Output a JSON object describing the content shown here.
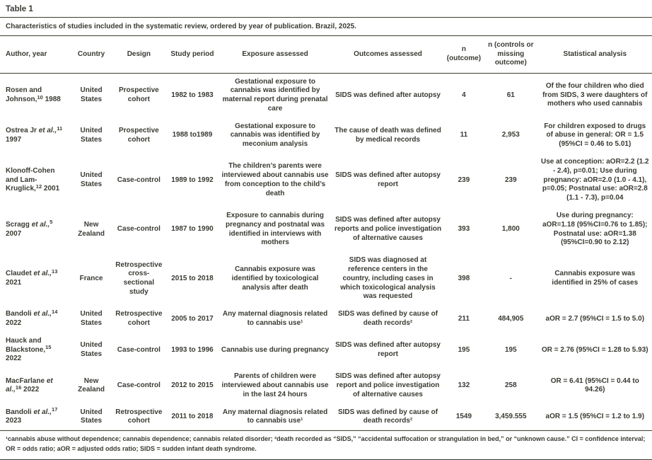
{
  "page": {
    "table_label": "Table 1",
    "caption": "Characteristics of studies included in the systematic review, ordered by year of publication. Brazil, 2025.",
    "footnote": "¹cannabis abuse without dependence; cannabis dependence; cannabis related disorder; ²death recorded as “SIDS,” “accidental suffocation or strangulation in bed,” or “unknown cause.” CI = confidence interval; OR = odds ratio; aOR = adjusted odds ratio; SIDS = sudden infant death syndrome."
  },
  "table": {
    "headers": [
      "Author, year",
      "Country",
      "Design",
      "Study period",
      "Exposure assessed",
      "Outcomes assessed",
      "n (outcome)",
      "n (controls or missing outcome)",
      "Statistical analysis"
    ],
    "rows": [
      {
        "author": {
          "name": "Rosen and Johnson,",
          "etal": "",
          "ref": "10",
          "year": " 1988"
        },
        "country": "United States",
        "design": "Prospective cohort",
        "period": "1982 to 1983",
        "exposure": "Gestational exposure to cannabis was identified by maternal report during prenatal care",
        "outcomes": "SIDS was defined after autopsy",
        "n_outcome": "4",
        "n_controls": "61",
        "stats": "Of the four children who died from SIDS, 3 were daughters of mothers who used cannabis"
      },
      {
        "author": {
          "name": "Ostrea Jr ",
          "etal": "et al.,",
          "ref": "11",
          "year": " 1997"
        },
        "country": "United States",
        "design": "Prospective cohort",
        "period": "1988 to1989",
        "exposure": "Gestational exposure to cannabis was identified by meconium analysis",
        "outcomes": "The cause of death was defined by medical records",
        "n_outcome": "11",
        "n_controls": "2,953",
        "stats": "For children exposed to drugs of abuse in general: OR = 1.5 (95%CI = 0.46 to 5.01)"
      },
      {
        "author": {
          "name": "Klonoff-Cohen and Lam-Kruglick,",
          "etal": "",
          "ref": "12",
          "year": " 2001"
        },
        "country": "United States",
        "design": "Case-control",
        "period": "1989 to 1992",
        "exposure": "The children’s parents were interviewed about cannabis use from conception to the child’s death",
        "outcomes": "SIDS was defined after autopsy report",
        "n_outcome": "239",
        "n_controls": "239",
        "stats": "Use at conception: aOR=2.2 (1.2 - 2.4), p=0.01; Use during pregnancy: aOR=2.0 (1.0 - 4.1), p=0.05; Postnatal use: aOR=2.8 (1.1 - 7.3), p=0.04"
      },
      {
        "author": {
          "name": "Scragg ",
          "etal": "et al.,",
          "ref": "5",
          "year": " 2007"
        },
        "country": "New Zealand",
        "design": "Case-control",
        "period": "1987 to 1990",
        "exposure": "Exposure to cannabis during pregnancy and postnatal was identified in interviews with mothers",
        "outcomes": "SIDS was defined after autopsy reports and police investigation of alternative causes",
        "n_outcome": "393",
        "n_controls": "1,800",
        "stats": "Use during pregnancy: aOR=1.18 (95%CI=0.76 to 1.85); Postnatal use: aOR=1.38 (95%CI=0.90 to 2.12)"
      },
      {
        "author": {
          "name": "Claudet ",
          "etal": "et al.,",
          "ref": "13",
          "year": " 2021"
        },
        "country": "France",
        "design": "Retrospective cross-sectional study",
        "period": "2015 to 2018",
        "exposure": "Cannabis exposure was identified by toxicological analysis after death",
        "outcomes": "SIDS was diagnosed at reference centers in the country, including cases in which toxicological analysis was requested",
        "n_outcome": "398",
        "n_controls": "-",
        "stats": "Cannabis exposure was identified in 25% of cases"
      },
      {
        "author": {
          "name": "Bandoli ",
          "etal": "et al.,",
          "ref": "14",
          "year": " 2022"
        },
        "country": "United States",
        "design": "Retrospective cohort",
        "period": "2005 to 2017",
        "exposure": "Any maternal diagnosis related to cannabis use¹",
        "outcomes": "SIDS was defined by cause of death records²",
        "n_outcome": "211",
        "n_controls": "484,905",
        "stats": "aOR = 2.7 (95%CI = 1.5 to 5.0)"
      },
      {
        "author": {
          "name": "Hauck and Blackstone,",
          "etal": "",
          "ref": "15",
          "year": " 2022"
        },
        "country": "United States",
        "design": "Case-control",
        "period": "1993 to 1996",
        "exposure": "Cannabis use during pregnancy",
        "outcomes": "SIDS was defined after autopsy report",
        "n_outcome": "195",
        "n_controls": "195",
        "stats": "OR = 2.76 (95%CI = 1.28 to 5.93)"
      },
      {
        "author": {
          "name": "MacFarlane ",
          "etal": "et al.,",
          "ref": "16",
          "year": " 2022"
        },
        "country": "New Zealand",
        "design": "Case-control",
        "period": "2012 to 2015",
        "exposure": "Parents of children were interviewed about cannabis use in the last 24 hours",
        "outcomes": "SIDS was defined after autopsy report and police investigation of alternative causes",
        "n_outcome": "132",
        "n_controls": "258",
        "stats": "OR = 6.41 (95%CI = 0.44 to 94.26)"
      },
      {
        "author": {
          "name": "Bandoli ",
          "etal": "et al.,",
          "ref": "17",
          "year": " 2023"
        },
        "country": "United States",
        "design": "Retrospective cohort",
        "period": "2011 to 2018",
        "exposure": "Any maternal diagnosis related to cannabis use¹",
        "outcomes": "SIDS was defined by cause of death records²",
        "n_outcome": "1549",
        "n_controls": "3,459.555",
        "stats": "aOR = 1.5 (95%CI = 1.2 to 1.9)"
      }
    ]
  }
}
